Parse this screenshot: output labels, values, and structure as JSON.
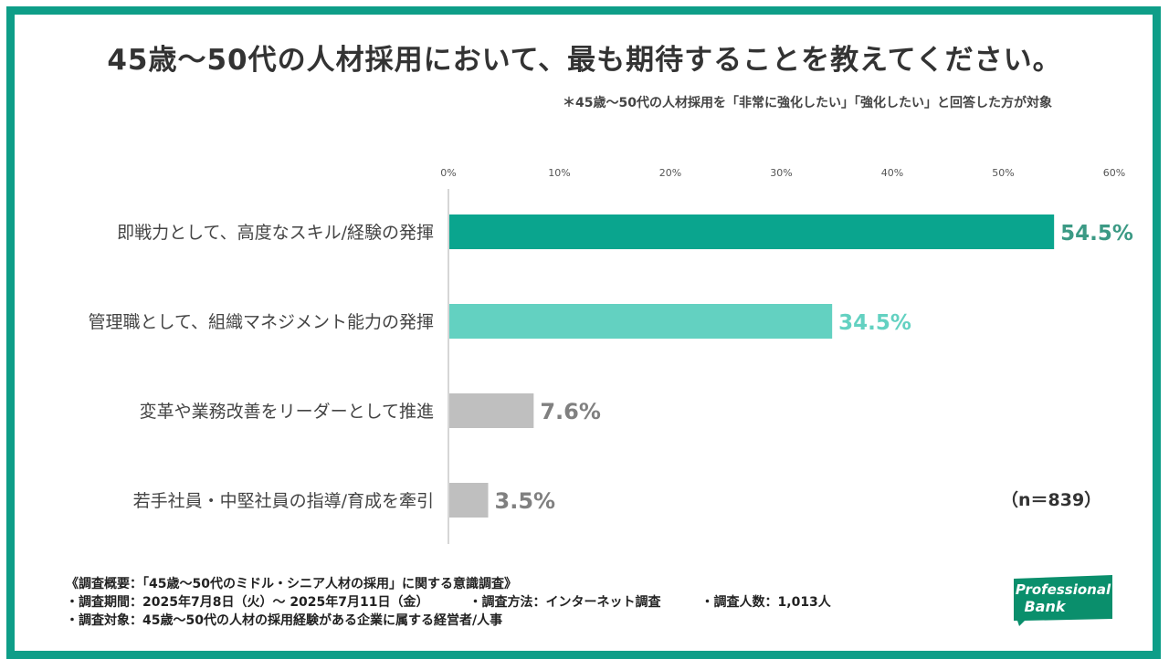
{
  "title": "45歳〜50代の人材採用において、最も期待することを教えてください。",
  "subnote": "＊45歳〜50代の人材採用を「非常に強化したい」「強化したい」と回答した方が対象",
  "sample_size": "（n＝839）",
  "footer": {
    "heading": "《調査概要：「45歳〜50代のミドル・シニア人材の採用」に関する意識調査》",
    "period": "・調査期間：2025年7月8日（火）〜 2025年7月11日（金）",
    "method": "・調査方法：インターネット調査",
    "count": "・調査人数：1,013人",
    "target": "・調査対象：45歳〜50代の人材の採用経験がある企業に属する経営者/人事"
  },
  "logo": {
    "line1": "Professional",
    "line2": "Bank"
  },
  "colors": {
    "frame": "#0e9e88",
    "bar1": "#0aa58e",
    "bar2": "#63d1c1",
    "bar_other": "#bfbfbf",
    "label1": "#3c9a85",
    "label2": "#63d1c1",
    "label_other": "#808080"
  },
  "chart_data": {
    "type": "bar",
    "orientation": "horizontal",
    "categories": [
      "即戦力として、高度なスキル/経験の発揮",
      "管理職として、組織マネジメント能力の発揮",
      "変革や業務改善をリーダーとして推進",
      "若手社員・中堅社員の指導/育成を牽引"
    ],
    "values": [
      54.5,
      34.5,
      7.6,
      3.5
    ],
    "value_labels": [
      "54.5%",
      "34.5%",
      "7.6%",
      "3.5%"
    ],
    "xlim": [
      0,
      60
    ],
    "xticks": [
      "0%",
      "10%",
      "20%",
      "30%",
      "40%",
      "50%",
      "60%"
    ],
    "axis_position": "top",
    "grid": false
  }
}
